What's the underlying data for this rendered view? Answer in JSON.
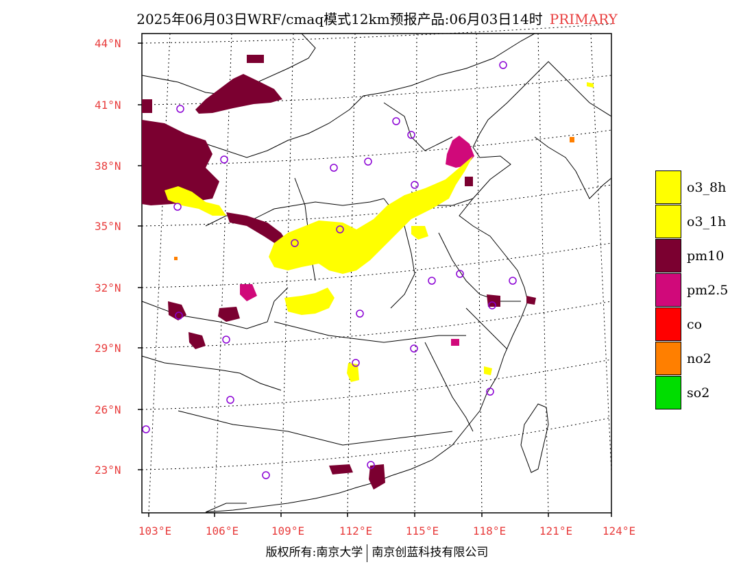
{
  "header": {
    "title": "2025年06月03日WRF/cmaq模式12km预报产品:06月03日14时",
    "primary_label": "PRIMARY"
  },
  "axes": {
    "lat_labels": [
      "44°N",
      "41°N",
      "38°N",
      "35°N",
      "32°N",
      "29°N",
      "26°N",
      "23°N"
    ],
    "lon_labels": [
      "103°E",
      "106°E",
      "109°E",
      "112°E",
      "115°E",
      "118°E",
      "121°E",
      "124°E"
    ]
  },
  "legend": [
    {
      "key": "o3_8h",
      "label": "o3_8h",
      "color": "#ffff00"
    },
    {
      "key": "o3_1h",
      "label": "o3_1h",
      "color": "#ffff00"
    },
    {
      "key": "pm10",
      "label": "pm10",
      "color": "#7b0030"
    },
    {
      "key": "pm25",
      "label": "pm2.5",
      "color": "#d0097a"
    },
    {
      "key": "co",
      "label": "co",
      "color": "#ff0000"
    },
    {
      "key": "no2",
      "label": "no2",
      "color": "#ff7f00"
    },
    {
      "key": "so2",
      "label": "so2",
      "color": "#00dd00"
    }
  ],
  "footer": {
    "copyright": "版权所有:南京大学",
    "company": "南京创蓝科技有限公司"
  },
  "colors": {
    "o3": "#ffff00",
    "pm10": "#7b0030",
    "pm25": "#d0097a",
    "no2": "#ff7f00",
    "station": "#8a00d4",
    "axis_label": "#e83c3c"
  }
}
